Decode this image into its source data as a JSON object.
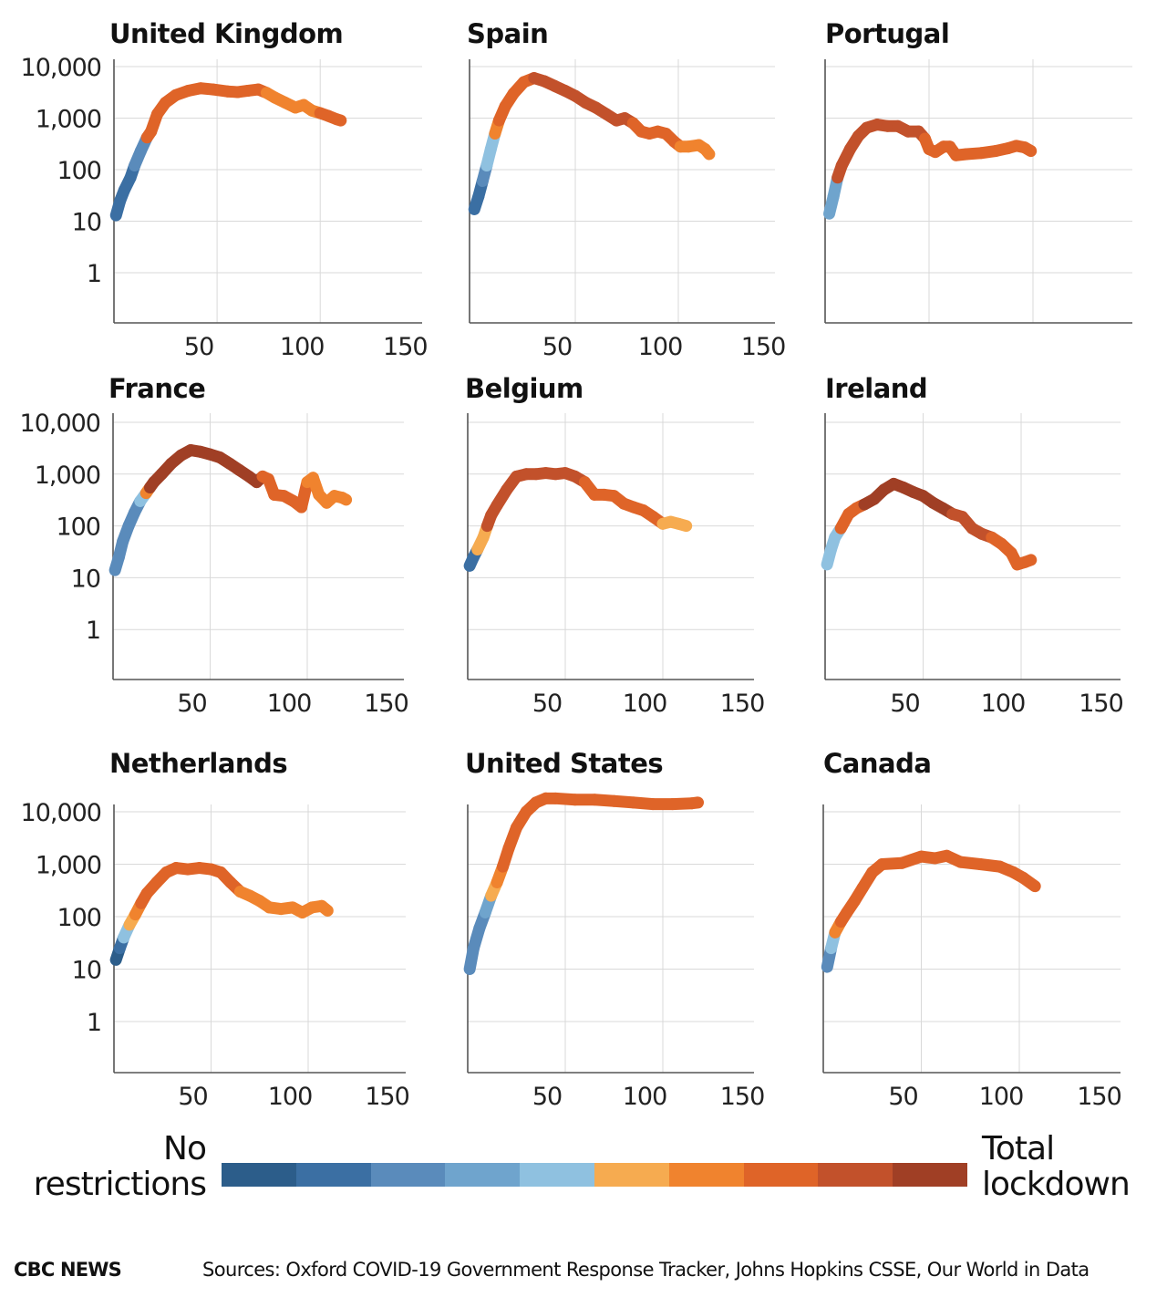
{
  "palette": [
    "#2c5d8a",
    "#3b6fa3",
    "#5a8bbb",
    "#6fa4cd",
    "#8fc1e0",
    "#f6ab50",
    "#f0832e",
    "#df6428",
    "#c2512b",
    "#a03f25"
  ],
  "legend": {
    "left_label_line1": "No",
    "left_label_line2": "restrictions",
    "right_label_line1": "Total",
    "right_label_line2": "lockdown"
  },
  "footer": {
    "brand": "CBC NEWS",
    "sources": "Sources: Oxford COVID-19 Government Response Tracker, Johns Hopkins CSSE, Our World in Data"
  },
  "chart_data": [
    {
      "type": "line",
      "title": "United Kingdom",
      "xlabel": "",
      "ylabel": "",
      "xlim": [
        0,
        150
      ],
      "ylim": [
        0.1,
        15000
      ],
      "yscale": "log",
      "xticks": [
        50,
        100,
        150
      ],
      "xtick_labels": [
        "50",
        "100",
        "150"
      ],
      "yticks": [
        1,
        10,
        100,
        1000,
        10000
      ],
      "ytick_labels": [
        "1",
        "10",
        "100",
        "1,000",
        "10,000"
      ],
      "grid": true,
      "points": [
        [
          1,
          13,
          1
        ],
        [
          3,
          25,
          1
        ],
        [
          5,
          40,
          1
        ],
        [
          8,
          70,
          1
        ],
        [
          10,
          120,
          1
        ],
        [
          13,
          230,
          2
        ],
        [
          16,
          420,
          2
        ],
        [
          18,
          550,
          7
        ],
        [
          21,
          1200,
          7
        ],
        [
          25,
          2000,
          7
        ],
        [
          30,
          2800,
          7
        ],
        [
          36,
          3400,
          7
        ],
        [
          42,
          3800,
          7
        ],
        [
          48,
          3600,
          7
        ],
        [
          55,
          3300,
          7
        ],
        [
          60,
          3200,
          7
        ],
        [
          65,
          3400,
          7
        ],
        [
          70,
          3600,
          7
        ],
        [
          74,
          3100,
          7
        ],
        [
          78,
          2500,
          6
        ],
        [
          83,
          2000,
          6
        ],
        [
          88,
          1600,
          6
        ],
        [
          92,
          1800,
          6
        ],
        [
          96,
          1400,
          6
        ],
        [
          100,
          1250,
          6
        ],
        [
          104,
          1100,
          7
        ],
        [
          108,
          950,
          7
        ],
        [
          110,
          900,
          7
        ]
      ]
    },
    {
      "type": "line",
      "title": "Spain",
      "xlabel": "",
      "ylabel": "",
      "xlim": [
        0,
        150
      ],
      "ylim": [
        0.1,
        15000
      ],
      "yscale": "log",
      "xticks": [
        50,
        100,
        150
      ],
      "xtick_labels": [
        "50",
        "100",
        "150"
      ],
      "yticks": [
        1,
        10,
        100,
        1000,
        10000
      ],
      "ytick_labels": [],
      "grid": true,
      "points": [
        [
          1,
          17,
          1
        ],
        [
          3,
          30,
          1
        ],
        [
          5,
          60,
          1
        ],
        [
          7,
          120,
          2
        ],
        [
          9,
          250,
          4
        ],
        [
          11,
          500,
          4
        ],
        [
          13,
          900,
          6
        ],
        [
          16,
          1700,
          7
        ],
        [
          20,
          3000,
          7
        ],
        [
          25,
          5000,
          7
        ],
        [
          30,
          6000,
          7
        ],
        [
          35,
          5200,
          8
        ],
        [
          40,
          4200,
          8
        ],
        [
          45,
          3400,
          8
        ],
        [
          50,
          2700,
          8
        ],
        [
          55,
          2000,
          8
        ],
        [
          60,
          1600,
          8
        ],
        [
          65,
          1200,
          8
        ],
        [
          70,
          900,
          8
        ],
        [
          74,
          1000,
          8
        ],
        [
          78,
          800,
          8
        ],
        [
          82,
          550,
          7
        ],
        [
          86,
          500,
          7
        ],
        [
          90,
          550,
          7
        ],
        [
          94,
          500,
          7
        ],
        [
          98,
          350,
          7
        ],
        [
          101,
          280,
          7
        ],
        [
          105,
          280,
          6
        ],
        [
          110,
          300,
          6
        ],
        [
          113,
          250,
          6
        ],
        [
          115,
          200,
          6
        ]
      ]
    },
    {
      "type": "line",
      "title": "Portugal",
      "xlabel": "",
      "ylabel": "",
      "xlim": [
        0,
        150
      ],
      "ylim": [
        0.1,
        15000
      ],
      "yscale": "log",
      "xticks": [
        50,
        100,
        150
      ],
      "xtick_labels": [],
      "yticks": [
        1,
        10,
        100,
        1000,
        10000
      ],
      "ytick_labels": [],
      "grid": true,
      "points": [
        [
          2,
          14,
          3
        ],
        [
          4,
          30,
          3
        ],
        [
          6,
          70,
          3
        ],
        [
          8,
          120,
          8
        ],
        [
          12,
          250,
          8
        ],
        [
          16,
          450,
          8
        ],
        [
          20,
          650,
          8
        ],
        [
          25,
          750,
          8
        ],
        [
          30,
          700,
          8
        ],
        [
          35,
          700,
          8
        ],
        [
          40,
          550,
          8
        ],
        [
          45,
          550,
          8
        ],
        [
          48,
          400,
          8
        ],
        [
          50,
          250,
          7
        ],
        [
          53,
          220,
          7
        ],
        [
          57,
          280,
          7
        ],
        [
          60,
          280,
          7
        ],
        [
          63,
          190,
          7
        ],
        [
          68,
          200,
          7
        ],
        [
          75,
          210,
          7
        ],
        [
          82,
          230,
          7
        ],
        [
          88,
          260,
          7
        ],
        [
          92,
          290,
          7
        ],
        [
          96,
          270,
          7
        ],
        [
          99,
          230,
          7
        ]
      ]
    },
    {
      "type": "line",
      "title": "France",
      "xlabel": "",
      "ylabel": "",
      "xlim": [
        0,
        150
      ],
      "ylim": [
        0.1,
        15000
      ],
      "yscale": "log",
      "xticks": [
        50,
        100,
        150
      ],
      "xtick_labels": [
        "50",
        "100",
        "150"
      ],
      "yticks": [
        1,
        10,
        100,
        1000,
        10000
      ],
      "ytick_labels": [
        "1",
        "10",
        "100",
        "1,000",
        "10,000"
      ],
      "grid": true,
      "points": [
        [
          1,
          14,
          2
        ],
        [
          3,
          25,
          2
        ],
        [
          5,
          50,
          2
        ],
        [
          8,
          100,
          2
        ],
        [
          11,
          180,
          2
        ],
        [
          14,
          300,
          2
        ],
        [
          17,
          430,
          4
        ],
        [
          19,
          550,
          6
        ],
        [
          21,
          700,
          9
        ],
        [
          25,
          1000,
          9
        ],
        [
          30,
          1600,
          9
        ],
        [
          35,
          2300,
          9
        ],
        [
          40,
          2900,
          9
        ],
        [
          45,
          2700,
          9
        ],
        [
          50,
          2400,
          9
        ],
        [
          55,
          2100,
          9
        ],
        [
          60,
          1600,
          9
        ],
        [
          65,
          1200,
          9
        ],
        [
          70,
          900,
          9
        ],
        [
          74,
          700,
          9
        ],
        [
          77,
          900,
          9
        ],
        [
          80,
          800,
          7
        ],
        [
          83,
          400,
          7
        ],
        [
          88,
          380,
          7
        ],
        [
          93,
          300,
          7
        ],
        [
          97,
          230,
          7
        ],
        [
          100,
          700,
          7
        ],
        [
          103,
          850,
          6
        ],
        [
          106,
          400,
          6
        ],
        [
          110,
          280,
          6
        ],
        [
          114,
          380,
          6
        ],
        [
          118,
          350,
          6
        ],
        [
          120,
          320,
          6
        ]
      ]
    },
    {
      "type": "line",
      "title": "Belgium",
      "xlabel": "",
      "ylabel": "",
      "xlim": [
        0,
        150
      ],
      "ylim": [
        0.1,
        15000
      ],
      "yscale": "log",
      "xticks": [
        50,
        100,
        150
      ],
      "xtick_labels": [
        "50",
        "100",
        "150"
      ],
      "yticks": [
        1,
        10,
        100,
        1000,
        10000
      ],
      "ytick_labels": [],
      "grid": true,
      "points": [
        [
          1,
          17,
          1
        ],
        [
          3,
          25,
          1
        ],
        [
          5,
          35,
          1
        ],
        [
          8,
          60,
          5
        ],
        [
          10,
          100,
          5
        ],
        [
          12,
          160,
          8
        ],
        [
          15,
          250,
          8
        ],
        [
          20,
          500,
          8
        ],
        [
          25,
          900,
          8
        ],
        [
          30,
          1000,
          8
        ],
        [
          35,
          1000,
          8
        ],
        [
          40,
          1050,
          8
        ],
        [
          45,
          1000,
          8
        ],
        [
          50,
          1050,
          8
        ],
        [
          55,
          900,
          8
        ],
        [
          60,
          700,
          8
        ],
        [
          65,
          400,
          7
        ],
        [
          70,
          400,
          7
        ],
        [
          75,
          380,
          7
        ],
        [
          80,
          270,
          7
        ],
        [
          85,
          230,
          7
        ],
        [
          90,
          200,
          7
        ],
        [
          95,
          150,
          7
        ],
        [
          100,
          110,
          7
        ],
        [
          104,
          120,
          5
        ],
        [
          108,
          110,
          5
        ],
        [
          112,
          100,
          5
        ]
      ]
    },
    {
      "type": "line",
      "title": "Ireland",
      "xlabel": "",
      "ylabel": "",
      "xlim": [
        0,
        150
      ],
      "ylim": [
        0.1,
        15000
      ],
      "yscale": "log",
      "xticks": [
        50,
        100,
        150
      ],
      "xtick_labels": [
        "50",
        "100",
        "150"
      ],
      "yticks": [
        1,
        10,
        100,
        1000,
        10000
      ],
      "ytick_labels": [],
      "grid": true,
      "points": [
        [
          1,
          18,
          4
        ],
        [
          3,
          35,
          4
        ],
        [
          5,
          60,
          4
        ],
        [
          8,
          90,
          4
        ],
        [
          12,
          170,
          7
        ],
        [
          16,
          220,
          7
        ],
        [
          20,
          260,
          7
        ],
        [
          25,
          330,
          9
        ],
        [
          30,
          500,
          9
        ],
        [
          35,
          650,
          9
        ],
        [
          40,
          550,
          9
        ],
        [
          45,
          450,
          9
        ],
        [
          50,
          380,
          9
        ],
        [
          55,
          280,
          9
        ],
        [
          60,
          220,
          9
        ],
        [
          65,
          170,
          9
        ],
        [
          70,
          150,
          8
        ],
        [
          75,
          90,
          8
        ],
        [
          80,
          70,
          8
        ],
        [
          85,
          60,
          8
        ],
        [
          90,
          45,
          7
        ],
        [
          95,
          30,
          7
        ],
        [
          98,
          18,
          7
        ],
        [
          102,
          20,
          7
        ],
        [
          105,
          22,
          7
        ]
      ]
    },
    {
      "type": "line",
      "title": "Netherlands",
      "xlabel": "",
      "ylabel": "",
      "xlim": [
        0,
        150
      ],
      "ylim": [
        0.1,
        15000
      ],
      "yscale": "log",
      "xticks": [
        50,
        100,
        150
      ],
      "xtick_labels": [
        "50",
        "100",
        "150"
      ],
      "yticks": [
        1,
        10,
        100,
        1000,
        10000
      ],
      "ytick_labels": [
        "1",
        "10",
        "100",
        "1,000",
        "10,000"
      ],
      "grid": true,
      "points": [
        [
          1,
          15,
          0
        ],
        [
          3,
          25,
          0
        ],
        [
          5,
          40,
          1
        ],
        [
          8,
          70,
          4
        ],
        [
          11,
          110,
          5
        ],
        [
          14,
          180,
          6
        ],
        [
          17,
          280,
          7
        ],
        [
          22,
          450,
          7
        ],
        [
          27,
          700,
          7
        ],
        [
          32,
          850,
          7
        ],
        [
          38,
          800,
          7
        ],
        [
          44,
          850,
          7
        ],
        [
          50,
          800,
          7
        ],
        [
          55,
          700,
          7
        ],
        [
          60,
          450,
          7
        ],
        [
          65,
          300,
          7
        ],
        [
          70,
          250,
          6
        ],
        [
          75,
          200,
          6
        ],
        [
          80,
          150,
          6
        ],
        [
          86,
          140,
          6
        ],
        [
          92,
          150,
          6
        ],
        [
          97,
          120,
          6
        ],
        [
          102,
          150,
          6
        ],
        [
          107,
          160,
          6
        ],
        [
          110,
          130,
          6
        ]
      ]
    },
    {
      "type": "line",
      "title": "United States",
      "xlabel": "",
      "ylabel": "",
      "xlim": [
        0,
        150
      ],
      "ylim": [
        0.1,
        15000
      ],
      "yscale": "log",
      "xticks": [
        50,
        100,
        150
      ],
      "xtick_labels": [
        "50",
        "100",
        "150"
      ],
      "yticks": [
        1,
        10,
        100,
        1000,
        10000
      ],
      "ytick_labels": [],
      "grid": true,
      "points": [
        [
          1,
          10,
          1
        ],
        [
          3,
          25,
          2
        ],
        [
          6,
          60,
          2
        ],
        [
          9,
          120,
          2
        ],
        [
          12,
          250,
          3
        ],
        [
          15,
          450,
          5
        ],
        [
          18,
          900,
          6
        ],
        [
          21,
          2000,
          7
        ],
        [
          25,
          5000,
          7
        ],
        [
          30,
          10000,
          7
        ],
        [
          35,
          15000,
          7
        ],
        [
          40,
          18000,
          7
        ],
        [
          45,
          18000,
          7
        ],
        [
          55,
          17000,
          7
        ],
        [
          65,
          17000,
          7
        ],
        [
          75,
          16000,
          7
        ],
        [
          85,
          15000,
          7
        ],
        [
          95,
          14000,
          7
        ],
        [
          105,
          14000,
          7
        ],
        [
          115,
          14500,
          7
        ],
        [
          118,
          15000,
          7
        ]
      ]
    },
    {
      "type": "line",
      "title": "Canada",
      "xlabel": "",
      "ylabel": "",
      "xlim": [
        0,
        150
      ],
      "ylim": [
        0.1,
        15000
      ],
      "yscale": "log",
      "xticks": [
        50,
        100,
        150
      ],
      "xtick_labels": [
        "50",
        "100",
        "150"
      ],
      "yticks": [
        1,
        10,
        100,
        1000,
        10000
      ],
      "ytick_labels": [],
      "grid": true,
      "points": [
        [
          2,
          11,
          2
        ],
        [
          4,
          25,
          2
        ],
        [
          6,
          50,
          4
        ],
        [
          9,
          80,
          6
        ],
        [
          12,
          120,
          7
        ],
        [
          16,
          200,
          7
        ],
        [
          20,
          350,
          7
        ],
        [
          25,
          700,
          7
        ],
        [
          30,
          1000,
          7
        ],
        [
          40,
          1050,
          7
        ],
        [
          50,
          1400,
          7
        ],
        [
          57,
          1300,
          7
        ],
        [
          63,
          1450,
          7
        ],
        [
          70,
          1100,
          7
        ],
        [
          80,
          1000,
          7
        ],
        [
          90,
          900,
          7
        ],
        [
          97,
          700,
          7
        ],
        [
          102,
          550,
          7
        ],
        [
          108,
          380,
          7
        ]
      ]
    }
  ]
}
